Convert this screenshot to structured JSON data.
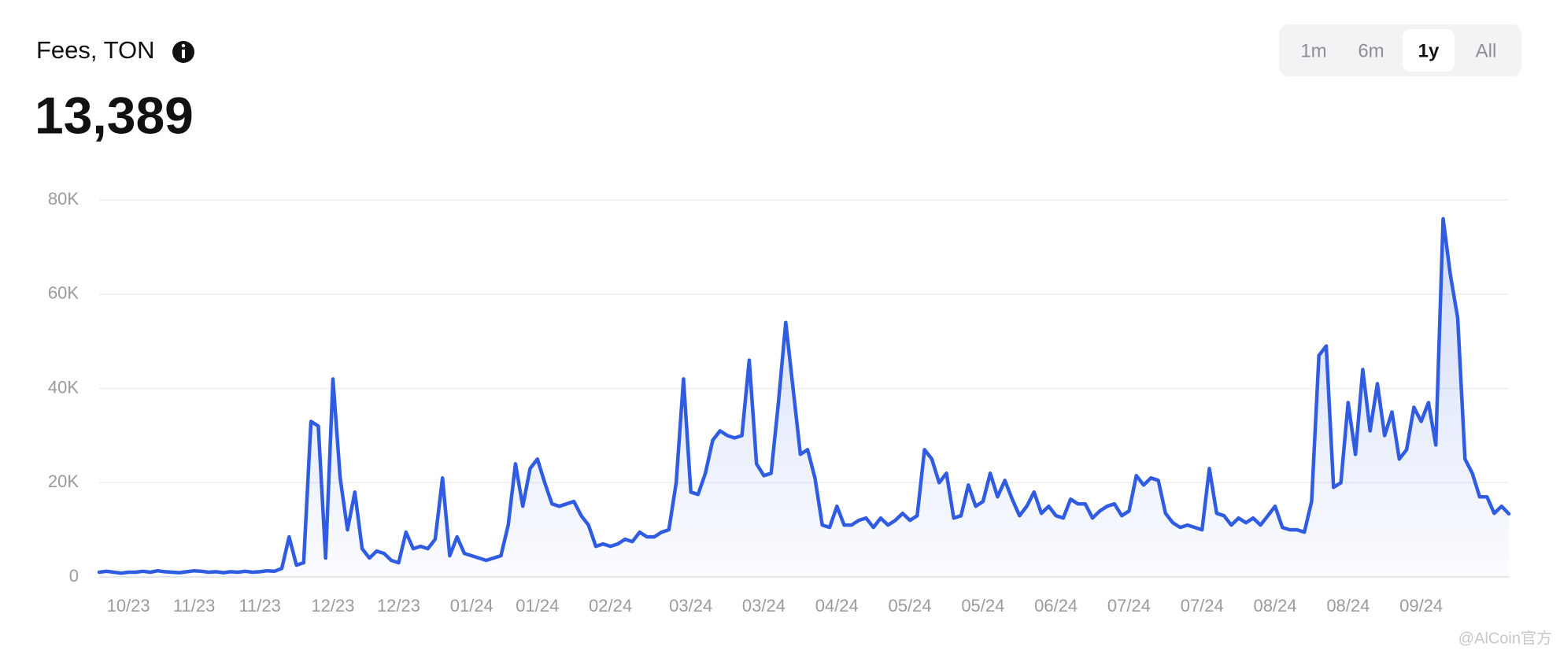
{
  "chart_data": {
    "type": "line",
    "title": "Fees, TON",
    "headline": "13,389",
    "range_buttons": [
      "1m",
      "6m",
      "1y",
      "All"
    ],
    "selected_range": "1y",
    "watermark": "@AlCoin官方",
    "categories": [
      null,
      null,
      null,
      null,
      "10/23",
      null,
      null,
      null,
      null,
      null,
      null,
      null,
      null,
      "11/23",
      null,
      null,
      null,
      null,
      null,
      null,
      null,
      null,
      "11/23",
      null,
      null,
      null,
      null,
      null,
      null,
      null,
      null,
      null,
      "12/23",
      null,
      null,
      null,
      null,
      null,
      null,
      null,
      null,
      "12/23",
      null,
      null,
      null,
      null,
      null,
      null,
      null,
      null,
      null,
      "01/24",
      null,
      null,
      null,
      null,
      null,
      null,
      null,
      null,
      "01/24",
      null,
      null,
      null,
      null,
      null,
      null,
      null,
      null,
      null,
      "02/24",
      null,
      null,
      null,
      null,
      null,
      null,
      null,
      null,
      null,
      null,
      "03/24",
      null,
      null,
      null,
      null,
      null,
      null,
      null,
      null,
      null,
      "03/24",
      null,
      null,
      null,
      null,
      null,
      null,
      null,
      null,
      null,
      "04/24",
      null,
      null,
      null,
      null,
      null,
      null,
      null,
      null,
      null,
      "05/24",
      null,
      null,
      null,
      null,
      null,
      null,
      null,
      null,
      null,
      "05/24",
      null,
      null,
      null,
      null,
      null,
      null,
      null,
      null,
      null,
      "06/24",
      null,
      null,
      null,
      null,
      null,
      null,
      null,
      null,
      null,
      "07/24",
      null,
      null,
      null,
      null,
      null,
      null,
      null,
      null,
      null,
      "07/24",
      null,
      null,
      null,
      null,
      null,
      null,
      null,
      null,
      null,
      "08/24",
      null,
      null,
      null,
      null,
      null,
      null,
      null,
      null,
      null,
      "08/24",
      null,
      null,
      null,
      null,
      null,
      null,
      null,
      null,
      null,
      "09/24",
      null,
      null,
      null,
      null,
      null,
      null,
      null,
      null,
      null,
      null,
      null,
      null
    ],
    "series": [
      {
        "name": "Fees",
        "color": "#2f5ce0",
        "values": [
          1000,
          1200,
          1000,
          800,
          1000,
          1000,
          1200,
          1000,
          1300,
          1100,
          1000,
          900,
          1100,
          1300,
          1200,
          1000,
          1100,
          900,
          1100,
          1000,
          1200,
          1000,
          1100,
          1300,
          1200,
          1800,
          8500,
          2500,
          3000,
          33000,
          32000,
          4000,
          42000,
          21000,
          10000,
          18000,
          6000,
          4000,
          5500,
          5000,
          3500,
          3000,
          9500,
          6000,
          6500,
          6000,
          8000,
          21000,
          4500,
          8500,
          5000,
          4500,
          4000,
          3500,
          4000,
          4500,
          11000,
          24000,
          15000,
          23000,
          25000,
          20000,
          15500,
          15000,
          15500,
          16000,
          13000,
          11000,
          6500,
          7000,
          6500,
          7000,
          8000,
          7500,
          9500,
          8500,
          8500,
          9500,
          10000,
          20000,
          42000,
          18000,
          17500,
          22000,
          29000,
          31000,
          30000,
          29500,
          30000,
          46000,
          24000,
          21500,
          22000,
          37000,
          54000,
          40000,
          26000,
          27000,
          21000,
          11000,
          10500,
          15000,
          11000,
          11000,
          12000,
          12500,
          10500,
          12500,
          11000,
          12000,
          13500,
          12000,
          13000,
          27000,
          25000,
          20000,
          22000,
          12500,
          13000,
          19500,
          15000,
          16000,
          22000,
          17000,
          20500,
          16500,
          13000,
          15000,
          18000,
          13500,
          15000,
          13000,
          12500,
          16500,
          15500,
          15500,
          12500,
          14000,
          15000,
          15500,
          13000,
          14000,
          21500,
          19500,
          21000,
          20500,
          13500,
          11500,
          10500,
          11000,
          10500,
          10000,
          23000,
          13500,
          13000,
          11000,
          12500,
          11500,
          12500,
          11000,
          13000,
          15000,
          10500,
          10000,
          10000,
          9500,
          16000,
          47000,
          49000,
          19000,
          20000,
          37000,
          26000,
          44000,
          31000,
          41000,
          30000,
          35000,
          25000,
          27000,
          36000,
          33000,
          37000,
          28000,
          76000,
          64000,
          55000,
          25000,
          22000,
          17000,
          17000,
          13500,
          15000,
          13389
        ]
      }
    ],
    "ylim": [
      0,
      80000
    ],
    "yticks": [
      {
        "value": 0,
        "label": "0"
      },
      {
        "value": 20000,
        "label": "20K"
      },
      {
        "value": 40000,
        "label": "40K"
      },
      {
        "value": 60000,
        "label": "60K"
      },
      {
        "value": 80000,
        "label": "80K"
      }
    ],
    "grid": true
  }
}
